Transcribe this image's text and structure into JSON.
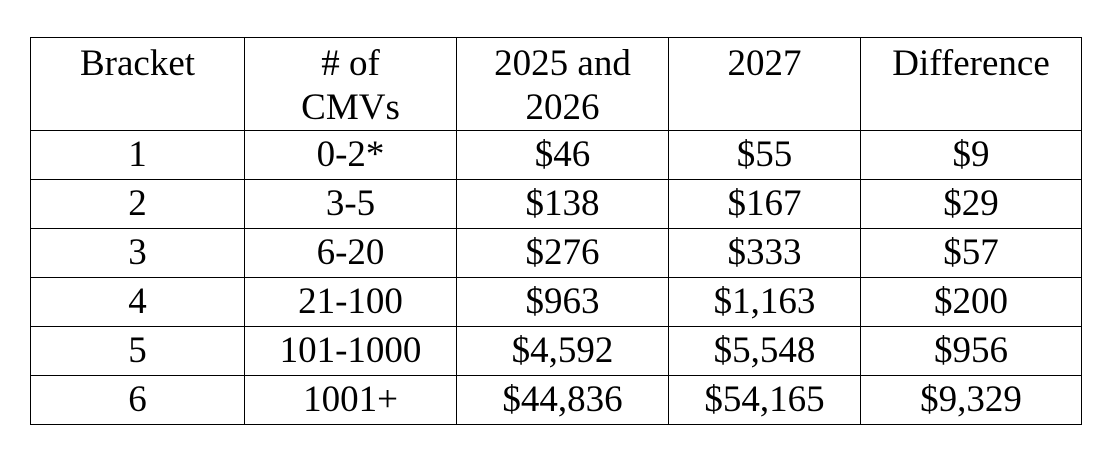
{
  "table": {
    "header": [
      "Bracket",
      "# of CMVs",
      "2025 and 2026",
      "2027",
      "Difference"
    ],
    "rows": [
      [
        "1",
        "0-2*",
        "$46",
        "$55",
        "$9"
      ],
      [
        "2",
        "3-5",
        "$138",
        "$167",
        "$29"
      ],
      [
        "3",
        "6-20",
        "$276",
        "$333",
        "$57"
      ],
      [
        "4",
        "21-100",
        "$963",
        "$1,163",
        "$200"
      ],
      [
        "5",
        "101-1000",
        "$4,592",
        "$5,548",
        "$956"
      ],
      [
        "6",
        "1001+",
        "$44,836",
        "$54,165",
        "$9,329"
      ]
    ]
  }
}
